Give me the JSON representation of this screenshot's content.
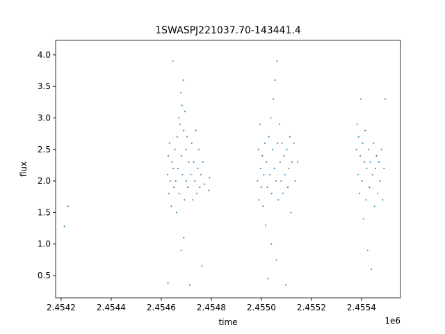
{
  "chart_data": {
    "type": "scatter",
    "title": "1SWASPJ221037.70-143441.4",
    "xlabel": "time",
    "ylabel": "flux",
    "x_offset_label": "1e6",
    "color": "#1f77b4",
    "xlim": [
      2454178,
      2455556
    ],
    "ylim": [
      0.147,
      4.23
    ],
    "xticks": [
      {
        "value": 2454200,
        "label": "2.4542"
      },
      {
        "value": 2454400,
        "label": "2.4544"
      },
      {
        "value": 2454600,
        "label": "2.4546"
      },
      {
        "value": 2454800,
        "label": "2.4548"
      },
      {
        "value": 2455000,
        "label": "2.4550"
      },
      {
        "value": 2455200,
        "label": "2.4552"
      },
      {
        "value": 2455400,
        "label": "2.4554"
      }
    ],
    "yticks": [
      0.5,
      {
        "value": 1,
        "label": "1.0"
      },
      1.5,
      {
        "value": 2,
        "label": "2.0"
      },
      2.5,
      {
        "value": 3,
        "label": "3.0"
      },
      3.5,
      {
        "value": 4,
        "label": "4.0"
      }
    ],
    "x": [
      2454228,
      2454213,
      2454625,
      2454628,
      2454630,
      2454633,
      2454636,
      2454640,
      2454643,
      2454646,
      2454648,
      2454651,
      2454655,
      2454658,
      2454661,
      2454664,
      2454667,
      2454670,
      2454672,
      2454675,
      2454678,
      2454680,
      2454683,
      2454685,
      2454688,
      2454690,
      2454693,
      2454695,
      2454698,
      2454700,
      2454703,
      2454706,
      2454710,
      2454714,
      2454718,
      2454722,
      2454726,
      2454730,
      2454734,
      2454738,
      2454742,
      2454746,
      2454750,
      2454754,
      2454758,
      2454762,
      2454766,
      2454772,
      2454790,
      2454793,
      2454690,
      2454680,
      2454627,
      2454985,
      2454988,
      2454991,
      2454994,
      2454997,
      2455000,
      2455004,
      2455007,
      2455010,
      2455014,
      2455017,
      2455020,
      2455024,
      2455027,
      2455030,
      2455034,
      2455038,
      2455041,
      2455045,
      2455048,
      2455052,
      2455055,
      2455058,
      2455062,
      2455065,
      2455068,
      2455072,
      2455075,
      2455079,
      2455082,
      2455086,
      2455090,
      2455094,
      2455098,
      2455102,
      2455106,
      2455110,
      2455114,
      2455118,
      2455122,
      2455130,
      2455135,
      2455145,
      2455060,
      2455040,
      2455380,
      2455383,
      2455386,
      2455389,
      2455392,
      2455395,
      2455398,
      2455402,
      2455405,
      2455408,
      2455412,
      2455415,
      2455418,
      2455421,
      2455425,
      2455428,
      2455432,
      2455436,
      2455440,
      2455444,
      2455448,
      2455452,
      2455456,
      2455460,
      2455465,
      2455470,
      2455475,
      2455480,
      2455485,
      2455490,
      2455495
    ],
    "values": [
      1.6,
      1.28,
      2.1,
      2.4,
      1.8,
      2.6,
      2.0,
      1.6,
      2.3,
      3.9,
      2.2,
      1.9,
      2.5,
      2.0,
      1.5,
      2.7,
      2.2,
      3.0,
      1.8,
      2.9,
      3.4,
      2.4,
      3.2,
      2.1,
      3.6,
      2.8,
      1.7,
      3.1,
      2.5,
      2.0,
      2.7,
      1.9,
      2.3,
      0.35,
      2.1,
      2.6,
      1.7,
      2.3,
      2.0,
      2.8,
      1.8,
      2.2,
      2.5,
      1.9,
      2.1,
      0.65,
      2.3,
      1.95,
      1.85,
      2.05,
      1.1,
      0.9,
      0.38,
      2.0,
      2.5,
      1.7,
      2.9,
      2.2,
      1.9,
      2.4,
      1.6,
      2.1,
      2.6,
      1.3,
      2.3,
      1.9,
      0.45,
      2.7,
      2.1,
      3.0,
      1.8,
      2.5,
      3.3,
      2.2,
      3.6,
      2.0,
      3.9,
      2.6,
      1.7,
      2.9,
      2.3,
      2.0,
      2.6,
      1.8,
      2.4,
      2.1,
      0.35,
      2.5,
      1.9,
      2.2,
      2.7,
      1.5,
      2.3,
      2.6,
      2.0,
      2.3,
      0.75,
      1.0,
      2.5,
      2.9,
      2.1,
      2.7,
      1.8,
      2.4,
      3.3,
      2.0,
      2.6,
      1.4,
      2.3,
      2.8,
      1.7,
      2.2,
      0.9,
      2.5,
      1.9,
      2.3,
      0.6,
      2.1,
      2.6,
      1.6,
      2.2,
      2.4,
      1.8,
      2.3,
      2.0,
      2.5,
      1.7,
      2.2,
      3.3
    ]
  }
}
